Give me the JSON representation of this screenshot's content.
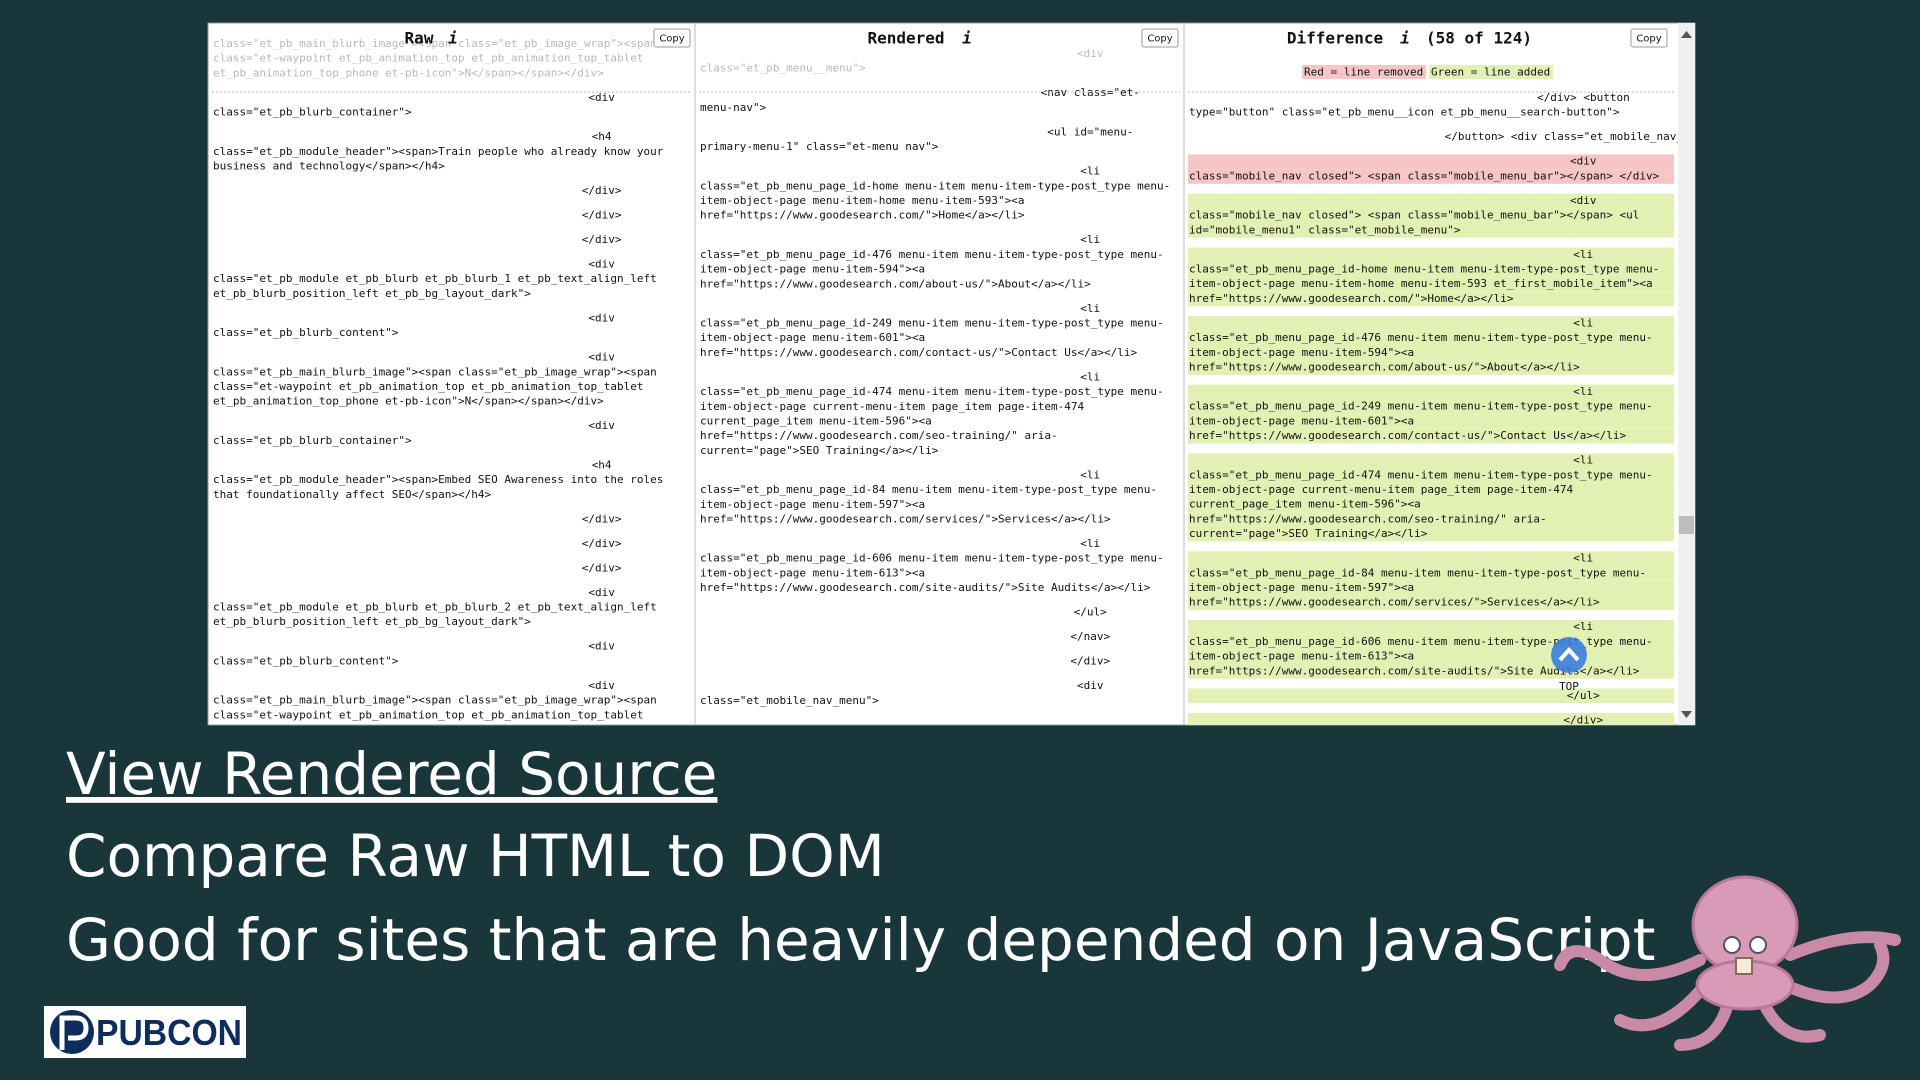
{
  "screenshot": {
    "info_icon": "i",
    "copy_button": "Copy",
    "scroll_top": "TOP",
    "panels": [
      {
        "title": "Raw",
        "lines": [
          {
            "text": "class=\"et_pb_main_blurb_image\"><span class=\"et_pb_image_wrap\"><span"
          },
          {
            "text": "class=\"et-waypoint et_pb_animation_top et_pb_animation_top_tablet"
          },
          {
            "text": "et_pb_animation_top_phone et-pb-icon\">N</span></span></div>"
          },
          {
            "text": "<div"
          },
          {
            "text": "class=\"et_pb_blurb_container\">"
          },
          {
            "text": "<h4"
          },
          {
            "text": "class=\"et_pb_module_header\"><span>Train people who already know your"
          },
          {
            "text": "business and technology</span></h4>"
          },
          {
            "text": "</div>"
          },
          {
            "text": "</div>"
          },
          {
            "text": "</div>"
          },
          {
            "text": "<div"
          },
          {
            "text": "class=\"et_pb_module et_pb_blurb et_pb_blurb_1  et_pb_text_align_left"
          },
          {
            "text": "et_pb_blurb_position_left et_pb_bg_layout_dark\">"
          },
          {
            "text": "<div"
          },
          {
            "text": "class=\"et_pb_blurb_content\">"
          },
          {
            "text": "<div"
          },
          {
            "text": "class=\"et_pb_main_blurb_image\"><span class=\"et_pb_image_wrap\"><span"
          },
          {
            "text": "class=\"et-waypoint et_pb_animation_top et_pb_animation_top_tablet"
          },
          {
            "text": "et_pb_animation_top_phone et-pb-icon\">N</span></span></div>"
          },
          {
            "text": "<div"
          },
          {
            "text": "class=\"et_pb_blurb_container\">"
          },
          {
            "text": "<h4"
          },
          {
            "text": "class=\"et_pb_module_header\"><span>Embed SEO Awareness into the roles"
          },
          {
            "text": "that foundationally affect SEO</span></h4>"
          },
          {
            "text": "</div>"
          },
          {
            "text": "</div>"
          },
          {
            "text": "</div>"
          },
          {
            "text": "<div"
          },
          {
            "text": "class=\"et_pb_module et_pb_blurb et_pb_blurb_2  et_pb_text_align_left"
          },
          {
            "text": "et_pb_blurb_position_left et_pb_bg_layout_dark\">"
          },
          {
            "text": "<div"
          },
          {
            "text": "class=\"et_pb_blurb_content\">"
          },
          {
            "text": "<div"
          },
          {
            "text": "class=\"et_pb_main_blurb_image\"><span class=\"et_pb_image_wrap\"><span"
          },
          {
            "text": "class=\"et-waypoint et_pb_animation_top et_pb_animation_top_tablet"
          }
        ]
      },
      {
        "title": "Rendered",
        "lines": [
          {
            "text": "<div"
          },
          {
            "text": "class=\"et_pb_menu__menu\">"
          },
          {
            "text": "<nav class=\"et-"
          },
          {
            "text": "menu-nav\">"
          },
          {
            "text": "<ul id=\"menu-"
          },
          {
            "text": "primary-menu-1\" class=\"et-menu nav\">"
          },
          {
            "text": "<li"
          },
          {
            "text": "class=\"et_pb_menu_page_id-home menu-item menu-item-type-post_type menu-"
          },
          {
            "text": "item-object-page menu-item-home menu-item-593\"><a"
          },
          {
            "text": "href=\"https://www.goodesearch.com/\">Home</a></li>"
          },
          {
            "text": "<li"
          },
          {
            "text": "class=\"et_pb_menu_page_id-476 menu-item menu-item-type-post_type menu-"
          },
          {
            "text": "item-object-page menu-item-594\"><a"
          },
          {
            "text": "href=\"https://www.goodesearch.com/about-us/\">About</a></li>"
          },
          {
            "text": "<li"
          },
          {
            "text": "class=\"et_pb_menu_page_id-249 menu-item menu-item-type-post_type menu-"
          },
          {
            "text": "item-object-page menu-item-601\"><a"
          },
          {
            "text": "href=\"https://www.goodesearch.com/contact-us/\">Contact Us</a></li>"
          },
          {
            "text": "<li"
          },
          {
            "text": "class=\"et_pb_menu_page_id-474 menu-item menu-item-type-post_type menu-"
          },
          {
            "text": "item-object-page current-menu-item page_item page-item-474"
          },
          {
            "text": "current_page_item menu-item-596\"><a"
          },
          {
            "text": "href=\"https://www.goodesearch.com/seo-training/\" aria-"
          },
          {
            "text": "current=\"page\">SEO Training</a></li>"
          },
          {
            "text": "<li"
          },
          {
            "text": "class=\"et_pb_menu_page_id-84 menu-item menu-item-type-post_type menu-"
          },
          {
            "text": "item-object-page menu-item-597\"><a"
          },
          {
            "text": "href=\"https://www.goodesearch.com/services/\">Services</a></li>"
          },
          {
            "text": "<li"
          },
          {
            "text": "class=\"et_pb_menu_page_id-606 menu-item menu-item-type-post_type menu-"
          },
          {
            "text": "item-object-page menu-item-613\"><a"
          },
          {
            "text": "href=\"https://www.goodesearch.com/site-audits/\">Site Audits</a></li>"
          },
          {
            "text": "</ul>"
          },
          {
            "text": "</nav>"
          },
          {
            "text": "</div>"
          },
          {
            "text": "<div"
          },
          {
            "text": "class=\"et_mobile_nav_menu\">"
          }
        ]
      },
      {
        "title": "Difference",
        "count": "(58 of 124)",
        "legend": {
          "removed": "Red = line removed",
          "added": "Green = line added"
        },
        "lines": [
          {
            "text": "</div> <button"
          },
          {
            "text": "type=\"button\" class=\"et_pb_menu__icon et_pb_menu__search-button\">"
          },
          {
            "text": "</button> <div class=\"et_mobile_nav_menu\">"
          },
          {
            "text": "<div",
            "status": "removed"
          },
          {
            "text": "class=\"mobile_nav closed\"> <span class=\"mobile_menu_bar\"></span> </div>",
            "status": "removed"
          },
          {
            "text": "<div",
            "status": "added"
          },
          {
            "text": "class=\"mobile_nav closed\"> <span class=\"mobile_menu_bar\"></span> <ul",
            "status": "added"
          },
          {
            "text": "id=\"mobile_menu1\" class=\"et_mobile_menu\">",
            "status": "added"
          },
          {
            "text": "<li",
            "status": "added"
          },
          {
            "text": "class=\"et_pb_menu_page_id-home menu-item menu-item-type-post_type menu-",
            "status": "added"
          },
          {
            "text": "item-object-page menu-item-home menu-item-593 et_first_mobile_item\"><a",
            "status": "added"
          },
          {
            "text": "href=\"https://www.goodesearch.com/\">Home</a></li>",
            "status": "added"
          },
          {
            "text": "<li",
            "status": "added"
          },
          {
            "text": "class=\"et_pb_menu_page_id-476 menu-item menu-item-type-post_type menu-",
            "status": "added"
          },
          {
            "text": "item-object-page menu-item-594\"><a",
            "status": "added"
          },
          {
            "text": "href=\"https://www.goodesearch.com/about-us/\">About</a></li>",
            "status": "added"
          },
          {
            "text": "<li",
            "status": "added"
          },
          {
            "text": "class=\"et_pb_menu_page_id-249 menu-item menu-item-type-post_type menu-",
            "status": "added"
          },
          {
            "text": "item-object-page menu-item-601\"><a",
            "status": "added"
          },
          {
            "text": "href=\"https://www.goodesearch.com/contact-us/\">Contact Us</a></li>",
            "status": "added"
          },
          {
            "text": "<li",
            "status": "added"
          },
          {
            "text": "class=\"et_pb_menu_page_id-474 menu-item menu-item-type-post_type menu-",
            "status": "added"
          },
          {
            "text": "item-object-page current-menu-item page_item page-item-474",
            "status": "added"
          },
          {
            "text": "current_page_item menu-item-596\"><a",
            "status": "added"
          },
          {
            "text": "href=\"https://www.goodesearch.com/seo-training/\" aria-",
            "status": "added"
          },
          {
            "text": "current=\"page\">SEO Training</a></li>",
            "status": "added"
          },
          {
            "text": "<li",
            "status": "added"
          },
          {
            "text": "class=\"et_pb_menu_page_id-84 menu-item menu-item-type-post_type menu-",
            "status": "added"
          },
          {
            "text": "item-object-page menu-item-597\"><a",
            "status": "added"
          },
          {
            "text": "href=\"https://www.goodesearch.com/services/\">Services</a></li>",
            "status": "added"
          },
          {
            "text": "<li",
            "status": "added"
          },
          {
            "text": "class=\"et_pb_menu_page_id-606 menu-item menu-item-type-post_type menu-",
            "status": "added"
          },
          {
            "text": "item-object-page menu-item-613\"><a",
            "status": "added"
          },
          {
            "text": "href=\"https://www.goodesearch.com/site-audits/\">Site Audits</a></li>",
            "status": "added"
          },
          {
            "text": "</ul>",
            "status": "added"
          },
          {
            "text": "</div>",
            "status": "added"
          }
        ]
      }
    ]
  },
  "slide": {
    "heading": "View Rendered Source",
    "bullets": [
      "Compare Raw HTML to DOM",
      "Good for sites that are heavily depended on JavaScript"
    ]
  },
  "logo": "PUBCON"
}
